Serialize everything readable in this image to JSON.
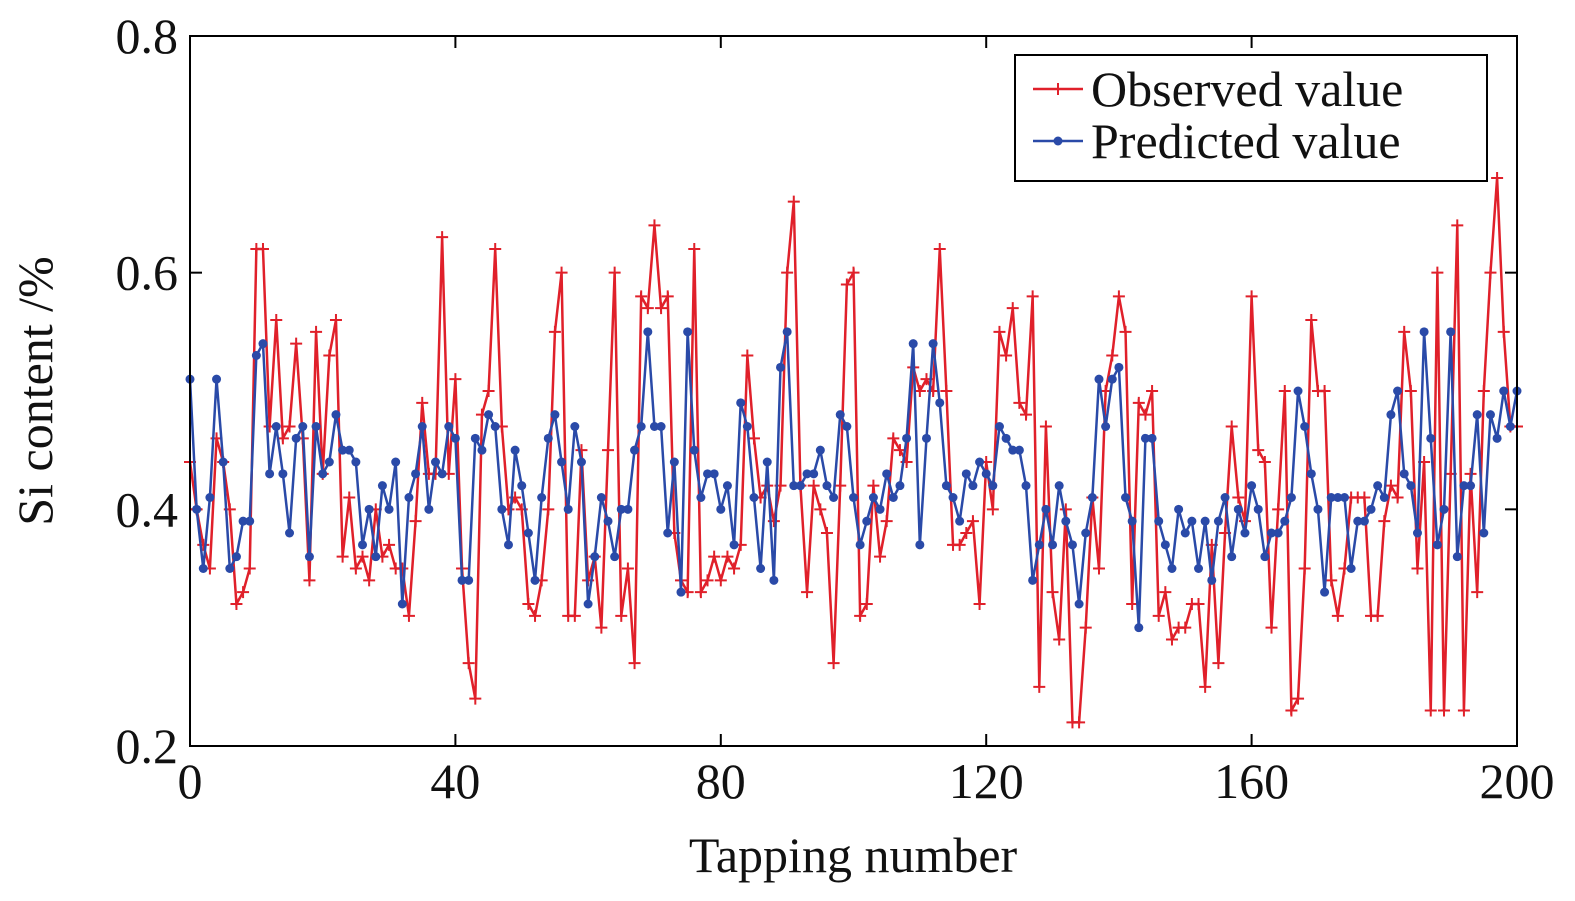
{
  "chart_data": {
    "type": "line",
    "xlabel": "Tapping number",
    "ylabel": "Si content /%",
    "xlim": [
      0,
      200
    ],
    "xticks": [
      0,
      40,
      80,
      120,
      160,
      200
    ],
    "ylim": [
      0.2,
      0.8
    ],
    "yticks": [
      0.2,
      0.4,
      0.6,
      0.8
    ],
    "legend": "upper right",
    "x": [
      0,
      1,
      2,
      3,
      4,
      5,
      6,
      7,
      8,
      9,
      10,
      11,
      12,
      13,
      14,
      15,
      16,
      17,
      18,
      19,
      20,
      21,
      22,
      23,
      24,
      25,
      26,
      27,
      28,
      29,
      30,
      31,
      32,
      33,
      34,
      35,
      36,
      37,
      38,
      39,
      40,
      41,
      42,
      43,
      44,
      45,
      46,
      47,
      48,
      49,
      50,
      51,
      52,
      53,
      54,
      55,
      56,
      57,
      58,
      59,
      60,
      61,
      62,
      63,
      64,
      65,
      66,
      67,
      68,
      69,
      70,
      71,
      72,
      73,
      74,
      75,
      76,
      77,
      78,
      79,
      80,
      81,
      82,
      83,
      84,
      85,
      86,
      87,
      88,
      89,
      90,
      91,
      92,
      93,
      94,
      95,
      96,
      97,
      98,
      99,
      100,
      101,
      102,
      103,
      104,
      105,
      106,
      107,
      108,
      109,
      110,
      111,
      112,
      113,
      114,
      115,
      116,
      117,
      118,
      119,
      120,
      121,
      122,
      123,
      124,
      125,
      126,
      127,
      128,
      129,
      130,
      131,
      132,
      133,
      134,
      135,
      136,
      137,
      138,
      139,
      140,
      141,
      142,
      143,
      144,
      145,
      146,
      147,
      148,
      149,
      150,
      151,
      152,
      153,
      154,
      155,
      156,
      157,
      158,
      159,
      160,
      161,
      162,
      163,
      164,
      165,
      166,
      167,
      168,
      169,
      170,
      171,
      172,
      173,
      174,
      175,
      176,
      177,
      178,
      179,
      180,
      181,
      182,
      183,
      184,
      185,
      186,
      187,
      188,
      189,
      190,
      191,
      192,
      193,
      194,
      195,
      196,
      197,
      198,
      199,
      200
    ],
    "series": [
      {
        "name": "Observed value",
        "color": "#e0202a",
        "marker": "plus",
        "values": [
          0.44,
          0.4,
          0.37,
          0.35,
          0.46,
          0.44,
          0.4,
          0.32,
          0.33,
          0.35,
          0.62,
          0.62,
          0.47,
          0.56,
          0.46,
          0.47,
          0.54,
          0.46,
          0.34,
          0.55,
          0.43,
          0.53,
          0.56,
          0.36,
          0.41,
          0.35,
          0.36,
          0.34,
          0.4,
          0.36,
          0.37,
          0.35,
          0.35,
          0.31,
          0.39,
          0.49,
          0.43,
          0.43,
          0.63,
          0.43,
          0.51,
          0.35,
          0.27,
          0.24,
          0.48,
          0.5,
          0.62,
          0.47,
          0.4,
          0.41,
          0.4,
          0.32,
          0.31,
          0.34,
          0.4,
          0.55,
          0.6,
          0.31,
          0.31,
          0.45,
          0.34,
          0.36,
          0.3,
          0.45,
          0.6,
          0.31,
          0.35,
          0.27,
          0.58,
          0.57,
          0.64,
          0.57,
          0.58,
          0.38,
          0.34,
          0.33,
          0.62,
          0.33,
          0.34,
          0.36,
          0.34,
          0.36,
          0.35,
          0.37,
          0.53,
          0.46,
          0.41,
          0.42,
          0.39,
          0.42,
          0.6,
          0.66,
          0.42,
          0.33,
          0.42,
          0.4,
          0.38,
          0.27,
          0.42,
          0.59,
          0.6,
          0.31,
          0.32,
          0.42,
          0.36,
          0.39,
          0.46,
          0.45,
          0.44,
          0.52,
          0.5,
          0.51,
          0.5,
          0.62,
          0.5,
          0.37,
          0.37,
          0.38,
          0.39,
          0.32,
          0.44,
          0.4,
          0.55,
          0.53,
          0.57,
          0.49,
          0.48,
          0.58,
          0.25,
          0.47,
          0.33,
          0.29,
          0.4,
          0.22,
          0.22,
          0.3,
          0.41,
          0.35,
          0.5,
          0.53,
          0.58,
          0.55,
          0.32,
          0.49,
          0.48,
          0.5,
          0.31,
          0.33,
          0.29,
          0.3,
          0.3,
          0.32,
          0.32,
          0.25,
          0.37,
          0.27,
          0.38,
          0.47,
          0.41,
          0.39,
          0.58,
          0.45,
          0.44,
          0.3,
          0.4,
          0.5,
          0.23,
          0.24,
          0.35,
          0.56,
          0.5,
          0.5,
          0.34,
          0.31,
          0.35,
          0.41,
          0.41,
          0.41,
          0.31,
          0.31,
          0.39,
          0.42,
          0.41,
          0.55,
          0.5,
          0.35,
          0.44,
          0.23,
          0.6,
          0.23,
          0.43,
          0.64,
          0.23,
          0.43,
          0.33,
          0.5,
          0.6,
          0.68,
          0.55,
          0.47,
          0.47
        ]
      },
      {
        "name": "Predicted value",
        "color": "#2a4aa8",
        "marker": "circle",
        "values": [
          0.51,
          0.4,
          0.35,
          0.41,
          0.51,
          0.44,
          0.35,
          0.36,
          0.39,
          0.39,
          0.53,
          0.54,
          0.43,
          0.47,
          0.43,
          0.38,
          0.46,
          0.47,
          0.36,
          0.47,
          0.43,
          0.44,
          0.48,
          0.45,
          0.45,
          0.44,
          0.37,
          0.4,
          0.36,
          0.42,
          0.4,
          0.44,
          0.32,
          0.41,
          0.43,
          0.47,
          0.4,
          0.44,
          0.43,
          0.47,
          0.46,
          0.34,
          0.34,
          0.46,
          0.45,
          0.48,
          0.47,
          0.4,
          0.37,
          0.45,
          0.42,
          0.38,
          0.34,
          0.41,
          0.46,
          0.48,
          0.44,
          0.4,
          0.47,
          0.44,
          0.32,
          0.36,
          0.41,
          0.39,
          0.36,
          0.4,
          0.4,
          0.45,
          0.47,
          0.55,
          0.47,
          0.47,
          0.38,
          0.44,
          0.33,
          0.55,
          0.45,
          0.41,
          0.43,
          0.43,
          0.4,
          0.42,
          0.37,
          0.49,
          0.47,
          0.41,
          0.35,
          0.44,
          0.34,
          0.52,
          0.55,
          0.42,
          0.42,
          0.43,
          0.43,
          0.45,
          0.42,
          0.41,
          0.48,
          0.47,
          0.41,
          0.37,
          0.39,
          0.41,
          0.4,
          0.43,
          0.41,
          0.42,
          0.46,
          0.54,
          0.37,
          0.46,
          0.54,
          0.49,
          0.42,
          0.41,
          0.39,
          0.43,
          0.42,
          0.44,
          0.43,
          0.42,
          0.47,
          0.46,
          0.45,
          0.45,
          0.42,
          0.34,
          0.37,
          0.4,
          0.37,
          0.42,
          0.39,
          0.37,
          0.32,
          0.38,
          0.41,
          0.51,
          0.47,
          0.51,
          0.52,
          0.41,
          0.39,
          0.3,
          0.46,
          0.46,
          0.39,
          0.37,
          0.35,
          0.4,
          0.38,
          0.39,
          0.35,
          0.39,
          0.34,
          0.39,
          0.41,
          0.36,
          0.4,
          0.38,
          0.42,
          0.4,
          0.36,
          0.38,
          0.38,
          0.39,
          0.41,
          0.5,
          0.47,
          0.43,
          0.4,
          0.33,
          0.41,
          0.41,
          0.41,
          0.35,
          0.39,
          0.39,
          0.4,
          0.42,
          0.41,
          0.48,
          0.5,
          0.43,
          0.42,
          0.38,
          0.55,
          0.46,
          0.37,
          0.4,
          0.55,
          0.36,
          0.42,
          0.42,
          0.48,
          0.38,
          0.48,
          0.46,
          0.5,
          0.47,
          0.5
        ]
      }
    ]
  }
}
